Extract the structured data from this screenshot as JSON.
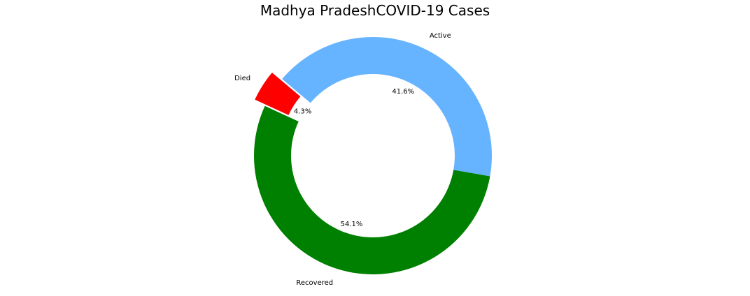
{
  "chart_data": {
    "type": "pie",
    "title": "Madhya PradeshCOVID-19 Cases",
    "donut": true,
    "slices": [
      {
        "label": "Active",
        "value": 41.6,
        "pct_label": "41.6%",
        "color": "#66b3ff",
        "exploded": false
      },
      {
        "label": "Died",
        "value": 4.3,
        "pct_label": "4.3%",
        "color": "#ff0000",
        "exploded": true
      },
      {
        "label": "Recovered",
        "value": 54.1,
        "pct_label": "54.1%",
        "color": "#008000",
        "exploded": false
      }
    ],
    "legend": "none"
  }
}
